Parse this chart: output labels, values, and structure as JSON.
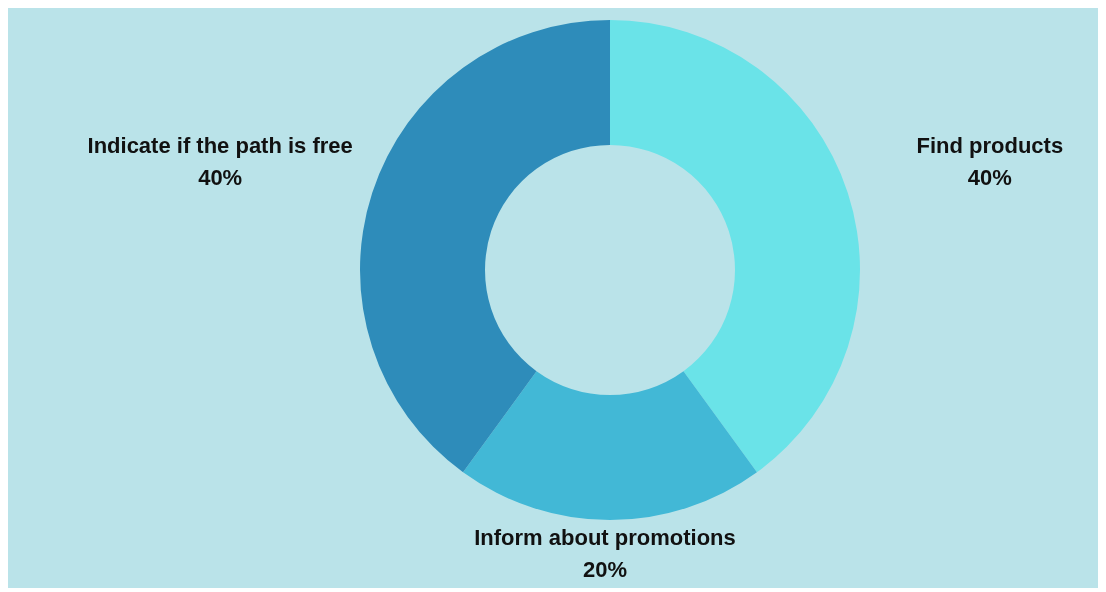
{
  "chart_data": {
    "type": "donut",
    "categories": [
      "Find products",
      "Inform about promotions",
      "Indicate if the path is free"
    ],
    "values": [
      40,
      20,
      40
    ],
    "colors": [
      "#6ae3e8",
      "#42b8d6",
      "#2e8cba"
    ],
    "value_labels": [
      "40%",
      "20%",
      "40%"
    ],
    "legend": false
  }
}
